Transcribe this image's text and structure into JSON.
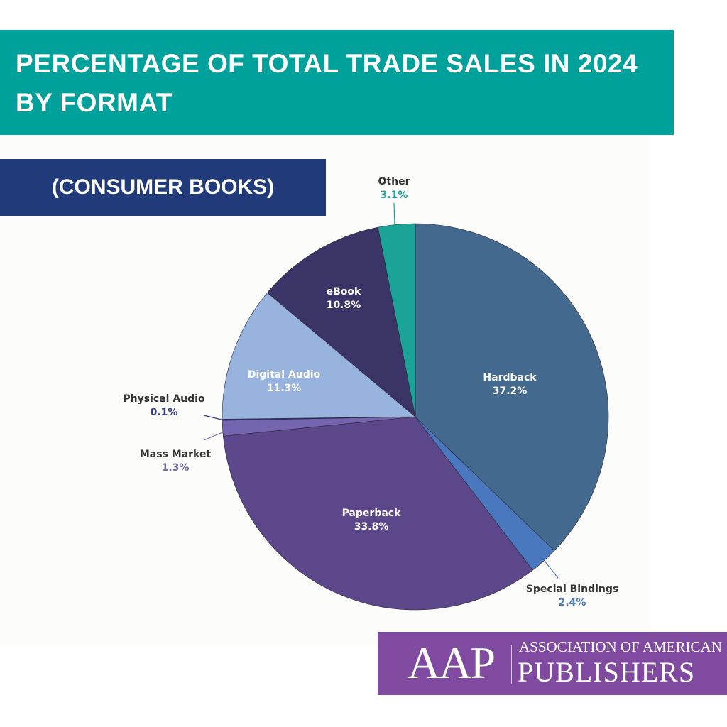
{
  "header": {
    "title": "PERCENTAGE OF TOTAL TRADE SALES IN 2024 BY FORMAT",
    "subtitle": "(CONSUMER BOOKS)"
  },
  "chart_data": {
    "type": "pie",
    "title": "PERCENTAGE OF TOTAL TRADE SALES IN 2024 BY FORMAT",
    "subtitle": "(CONSUMER BOOKS)",
    "start_angle": "12 o'clock, clockwise",
    "slices": [
      {
        "label": "Hardback",
        "value": 37.2,
        "color": "#436a8e",
        "pct_color": "#ffffff"
      },
      {
        "label": "Special Bindings",
        "value": 2.4,
        "color": "#4a78bf",
        "pct_color": "#4a78bf"
      },
      {
        "label": "Paperback",
        "value": 33.8,
        "color": "#5c478b",
        "pct_color": "#ffffff"
      },
      {
        "label": "Mass Market",
        "value": 1.3,
        "color": "#7564b0",
        "pct_color": "#7564b0"
      },
      {
        "label": "Physical Audio",
        "value": 0.1,
        "color": "#2d3a8a",
        "pct_color": "#2d3a8a"
      },
      {
        "label": "Digital Audio",
        "value": 11.3,
        "color": "#98b3de",
        "pct_color": "#ffffff"
      },
      {
        "label": "eBook",
        "value": 10.8,
        "color": "#3a3566",
        "pct_color": "#ffffff"
      },
      {
        "label": "Other",
        "value": 3.1,
        "color": "#1aa396",
        "pct_color": "#1aa396"
      }
    ]
  },
  "logo": {
    "abbr": "AAP",
    "line1": "ASSOCIATION OF AMERICAN",
    "line2": "PUBLISHERS"
  }
}
